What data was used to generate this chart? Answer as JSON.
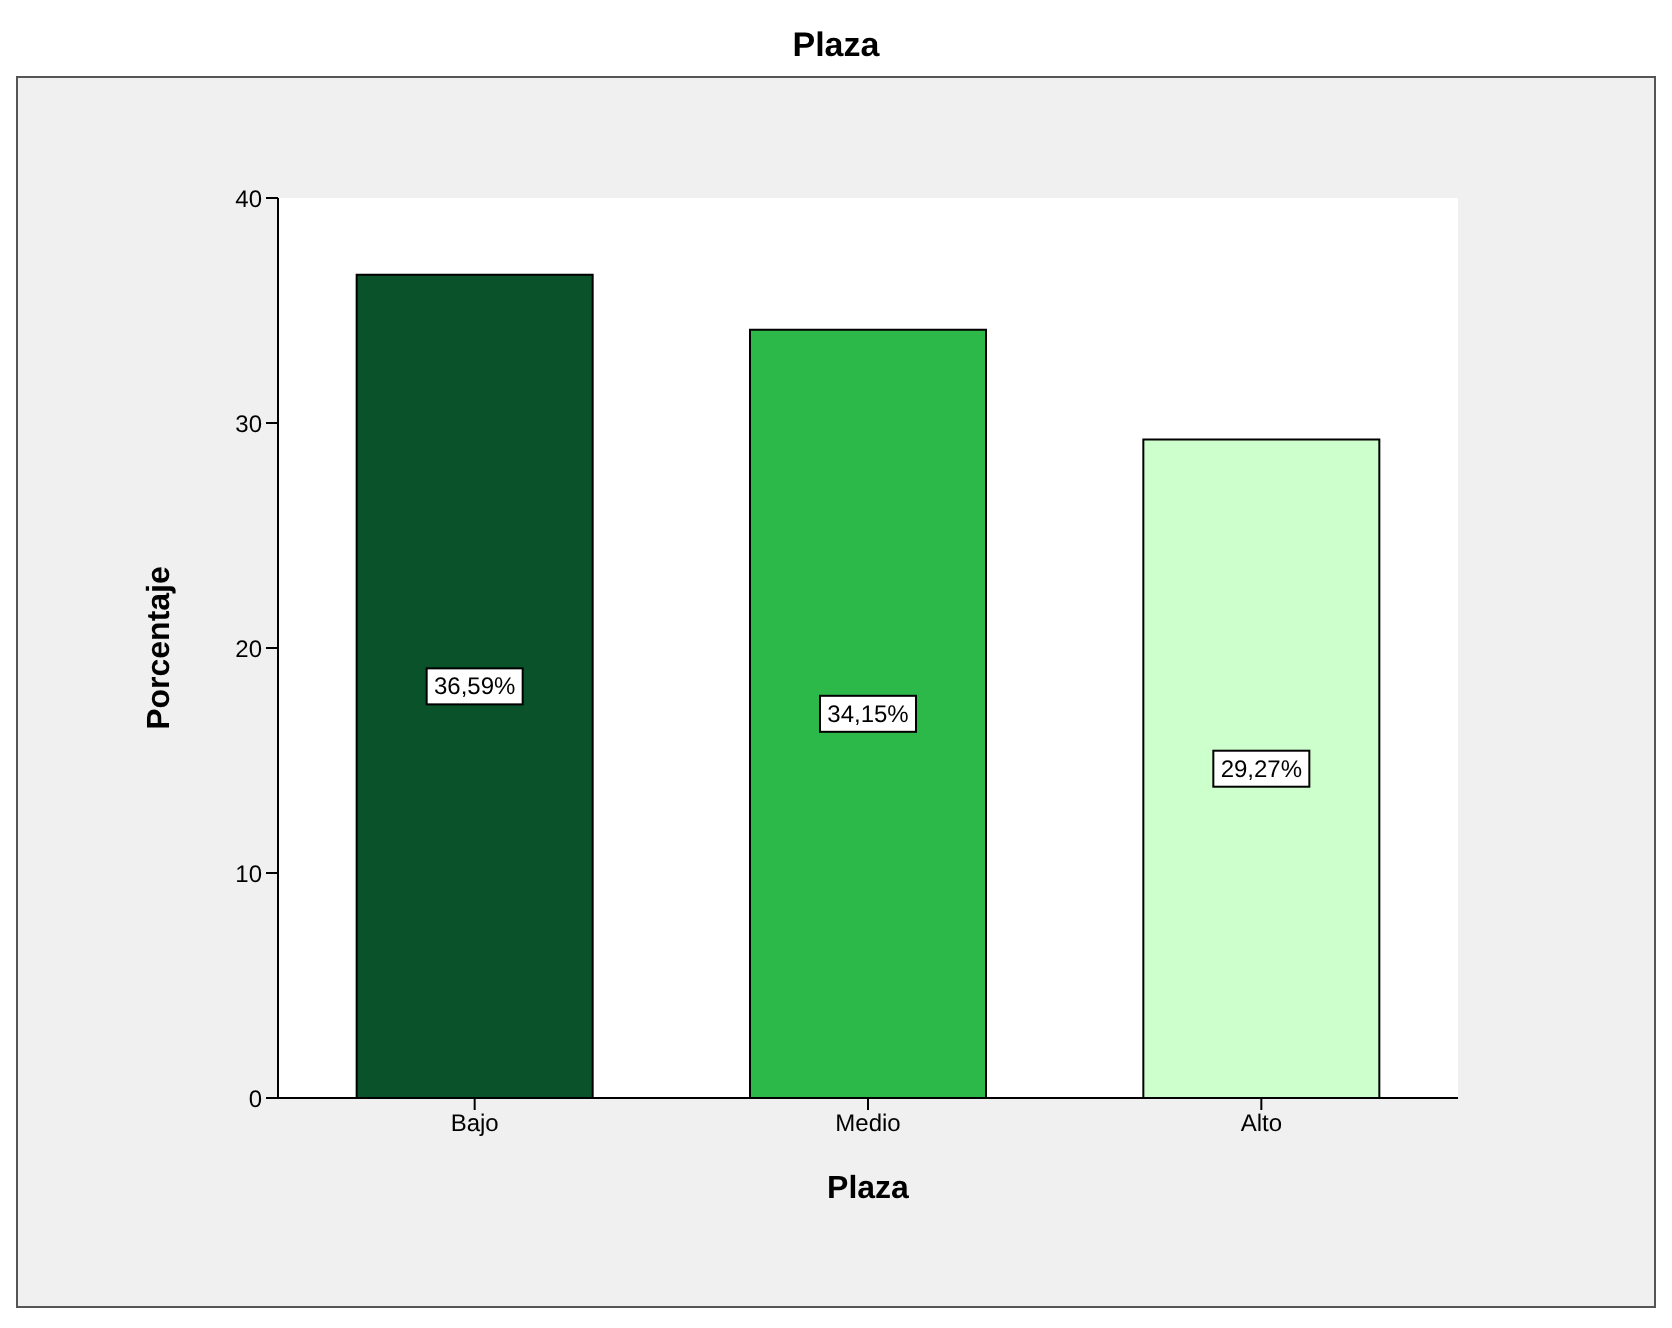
{
  "chart_data": {
    "type": "bar",
    "title": "Plaza",
    "xlabel": "Plaza",
    "ylabel": "Porcentaje",
    "categories": [
      "Bajo",
      "Medio",
      "Alto"
    ],
    "values": [
      36.59,
      34.15,
      29.27
    ],
    "colors": [
      "#0a5229",
      "#2db84a",
      "#ccffcc"
    ],
    "value_labels": [
      "36,59%",
      "34,15%",
      "29,27%"
    ],
    "ylim": [
      0,
      40
    ],
    "yticks": [
      0,
      10,
      20,
      30,
      40
    ],
    "grid": false,
    "legend": false
  }
}
